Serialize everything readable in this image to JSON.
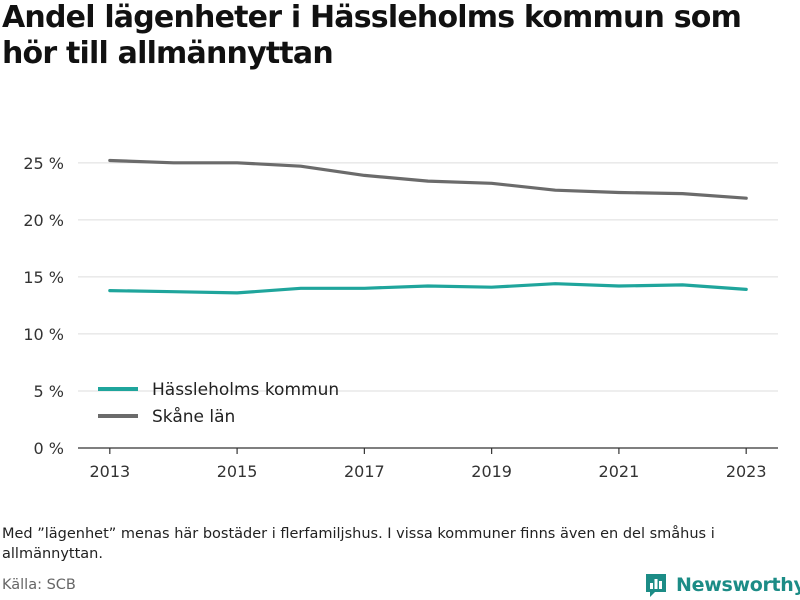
{
  "chart_data": {
    "type": "line",
    "title": "Andel lägenheter i Hässleholms kommun som hör till allmännyttan",
    "x": [
      2013,
      2014,
      2015,
      2016,
      2017,
      2018,
      2019,
      2020,
      2021,
      2022,
      2023
    ],
    "x_tick_labels": [
      "2013",
      "2015",
      "2017",
      "2019",
      "2021",
      "2023"
    ],
    "x_tick_values": [
      2013,
      2015,
      2017,
      2019,
      2021,
      2023
    ],
    "y_tick_labels": [
      "0 %",
      "5 %",
      "10 %",
      "15 %",
      "20 %",
      "25 %"
    ],
    "y_tick_values": [
      0,
      5,
      10,
      15,
      20,
      25
    ],
    "ylim": [
      0,
      27
    ],
    "xlim": [
      2012.5,
      2023.5
    ],
    "grid": "horizontal",
    "legend_position": "bottom-left",
    "series": [
      {
        "name": "Hässleholms kommun",
        "color": "#1fa59c",
        "values": [
          13.8,
          13.7,
          13.6,
          14.0,
          14.0,
          14.2,
          14.1,
          14.4,
          14.2,
          14.3,
          13.9
        ]
      },
      {
        "name": "Skåne län",
        "color": "#6b6b6b",
        "values": [
          25.2,
          25.0,
          25.0,
          24.7,
          23.9,
          23.4,
          23.2,
          22.6,
          22.4,
          22.3,
          21.9
        ]
      }
    ]
  },
  "note": "Med ”lägenhet” menas här bostäder i flerfamiljshus. I vissa kommuner finns även en del småhus i allmännyttan.",
  "source": "Källa: SCB",
  "brand": {
    "name": "Newsworthy",
    "icon": "bar-chart-icon",
    "color": "#1c8c86"
  }
}
